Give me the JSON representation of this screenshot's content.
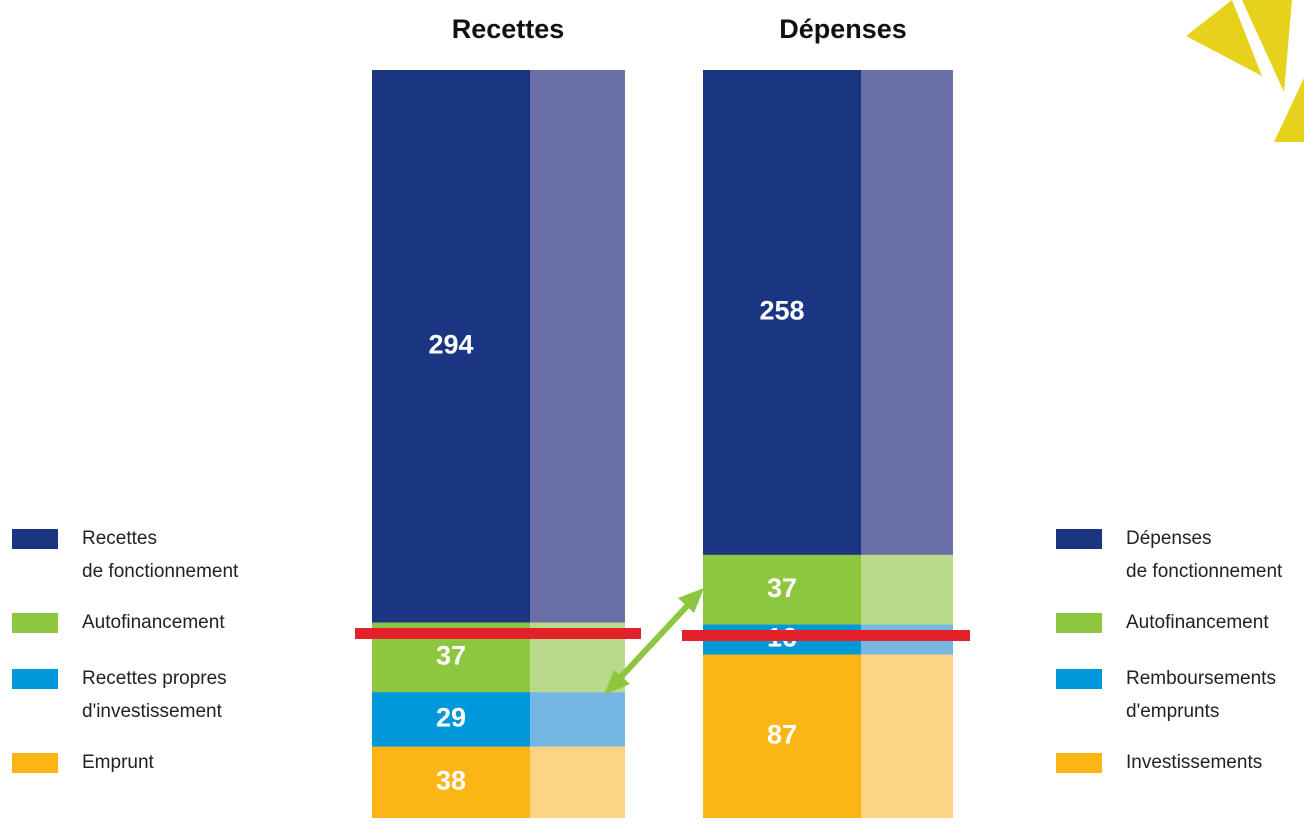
{
  "chart_data": [
    {
      "type": "stacked_column",
      "title": "Recettes",
      "legend": "left",
      "series": [
        {
          "name": "Recettes\nde fonctionnement",
          "color": "#1a3683",
          "light_color": "#6a6fa8",
          "value": 294
        },
        {
          "name": "Autofinancement",
          "color": "#8dc63f",
          "light_color": "#b9d98b",
          "value": 37
        },
        {
          "name": "Recettes propres\nd'investissement",
          "color": "#0098d8",
          "light_color": "#76b6e2",
          "value": 29
        },
        {
          "name": "Emprunt",
          "color": "#fbb616",
          "light_color": "#fdd385",
          "value": 38
        }
      ]
    },
    {
      "type": "stacked_column",
      "title": "Dépenses",
      "legend": "right",
      "series": [
        {
          "name": "Dépenses\nde fonctionnement",
          "color": "#1a3683",
          "light_color": "#6a6fa8",
          "value": 258
        },
        {
          "name": "Autofinancement",
          "color": "#8dc63f",
          "light_color": "#b9d98b",
          "value": 37
        },
        {
          "name": "Remboursements\nd'emprunts",
          "color": "#0098d8",
          "light_color": "#76b6e2",
          "value": 16
        },
        {
          "name": "Investissements",
          "color": "#fbb616",
          "light_color": "#fdd385",
          "value": 87
        }
      ]
    }
  ]
}
